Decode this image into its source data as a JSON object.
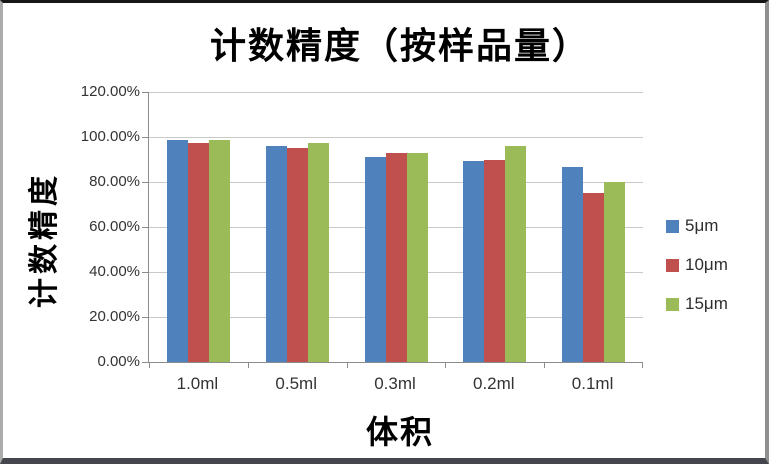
{
  "chart_data": {
    "type": "bar",
    "title": "计数精度（按样品量）",
    "xlabel": "体积",
    "ylabel": "计数精度",
    "categories": [
      "1.0ml",
      "0.5ml",
      "0.3ml",
      "0.2ml",
      "0.1ml"
    ],
    "series": [
      {
        "name": "5μm",
        "color": "#4f81bd",
        "values": [
          98.5,
          96.0,
          91.0,
          89.5,
          86.5
        ]
      },
      {
        "name": "10μm",
        "color": "#c0504d",
        "values": [
          97.5,
          95.0,
          93.0,
          90.0,
          75.0
        ]
      },
      {
        "name": "15μm",
        "color": "#9bbb59",
        "values": [
          98.5,
          97.5,
          93.0,
          96.0,
          80.0
        ]
      }
    ],
    "ylim": [
      0,
      120
    ],
    "y_tick_step": 20,
    "y_tick_labels": [
      "120.00%",
      "100.00%",
      "80.00%",
      "60.00%",
      "40.00%",
      "20.00%",
      "0.00%"
    ],
    "grid": true,
    "legend_position": "right",
    "colors": {
      "gridline": "#c9c9c9",
      "axis": "#8c8c8c",
      "tick_text": "#333333",
      "title_text": "#000000"
    }
  }
}
